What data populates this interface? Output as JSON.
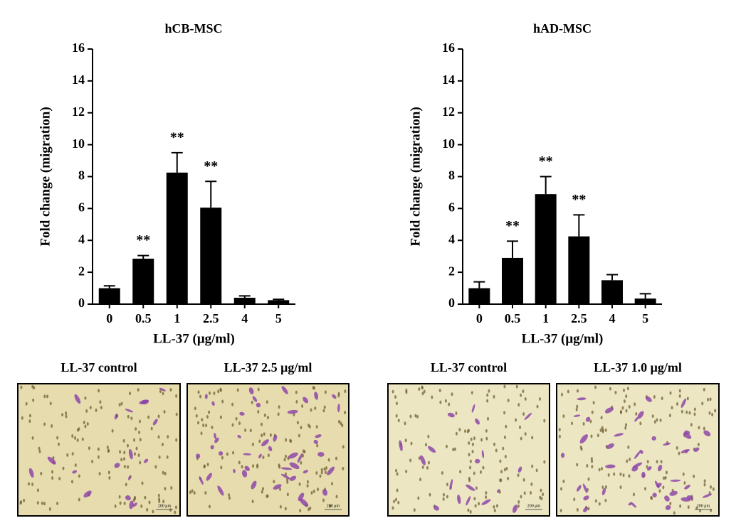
{
  "chart_data": [
    {
      "type": "bar",
      "title": "hCB-MSC",
      "x_label": "LL-37 (μg/ml)",
      "y_label": "Fold change (migration)",
      "categories": [
        "0",
        "0.5",
        "1",
        "2.5",
        "4",
        "5"
      ],
      "values": [
        1.0,
        2.85,
        8.25,
        6.05,
        0.4,
        0.25
      ],
      "errors": [
        0.15,
        0.2,
        1.25,
        1.65,
        0.12,
        0.05
      ],
      "color": "#000000",
      "ylim": [
        0,
        16
      ],
      "yticks": [
        0,
        2,
        4,
        6,
        8,
        10,
        12,
        14,
        16
      ],
      "annotations": [
        {
          "category": "0.5",
          "text": "**"
        },
        {
          "category": "1",
          "text": "**"
        },
        {
          "category": "2.5",
          "text": "**"
        }
      ]
    },
    {
      "type": "bar",
      "title": "hAD-MSC",
      "x_label": "LL-37 (μg/ml)",
      "y_label": "Fold change (migration)",
      "categories": [
        "0",
        "0.5",
        "1",
        "2.5",
        "4",
        "5"
      ],
      "values": [
        1.0,
        2.9,
        6.9,
        4.25,
        1.5,
        0.35
      ],
      "errors": [
        0.4,
        1.05,
        1.1,
        1.35,
        0.35,
        0.3
      ],
      "color": "#000000",
      "ylim": [
        0,
        16
      ],
      "yticks": [
        0,
        2,
        4,
        6,
        8,
        10,
        12,
        14,
        16
      ],
      "annotations": [
        {
          "category": "0.5",
          "text": "**"
        },
        {
          "category": "1",
          "text": "**"
        },
        {
          "category": "2.5",
          "text": "**"
        }
      ]
    }
  ],
  "images": [
    {
      "label": "LL-37 control",
      "scale": "200 μm",
      "stain": "low"
    },
    {
      "label": "LL-37 2.5 μg/ml",
      "scale": "200 μm",
      "stain": "high"
    },
    {
      "label": "LL-37 control",
      "scale": "200 μm",
      "stain": "low"
    },
    {
      "label": "LL-37 1.0 μg/ml",
      "scale": "200 μm",
      "stain": "high"
    }
  ]
}
